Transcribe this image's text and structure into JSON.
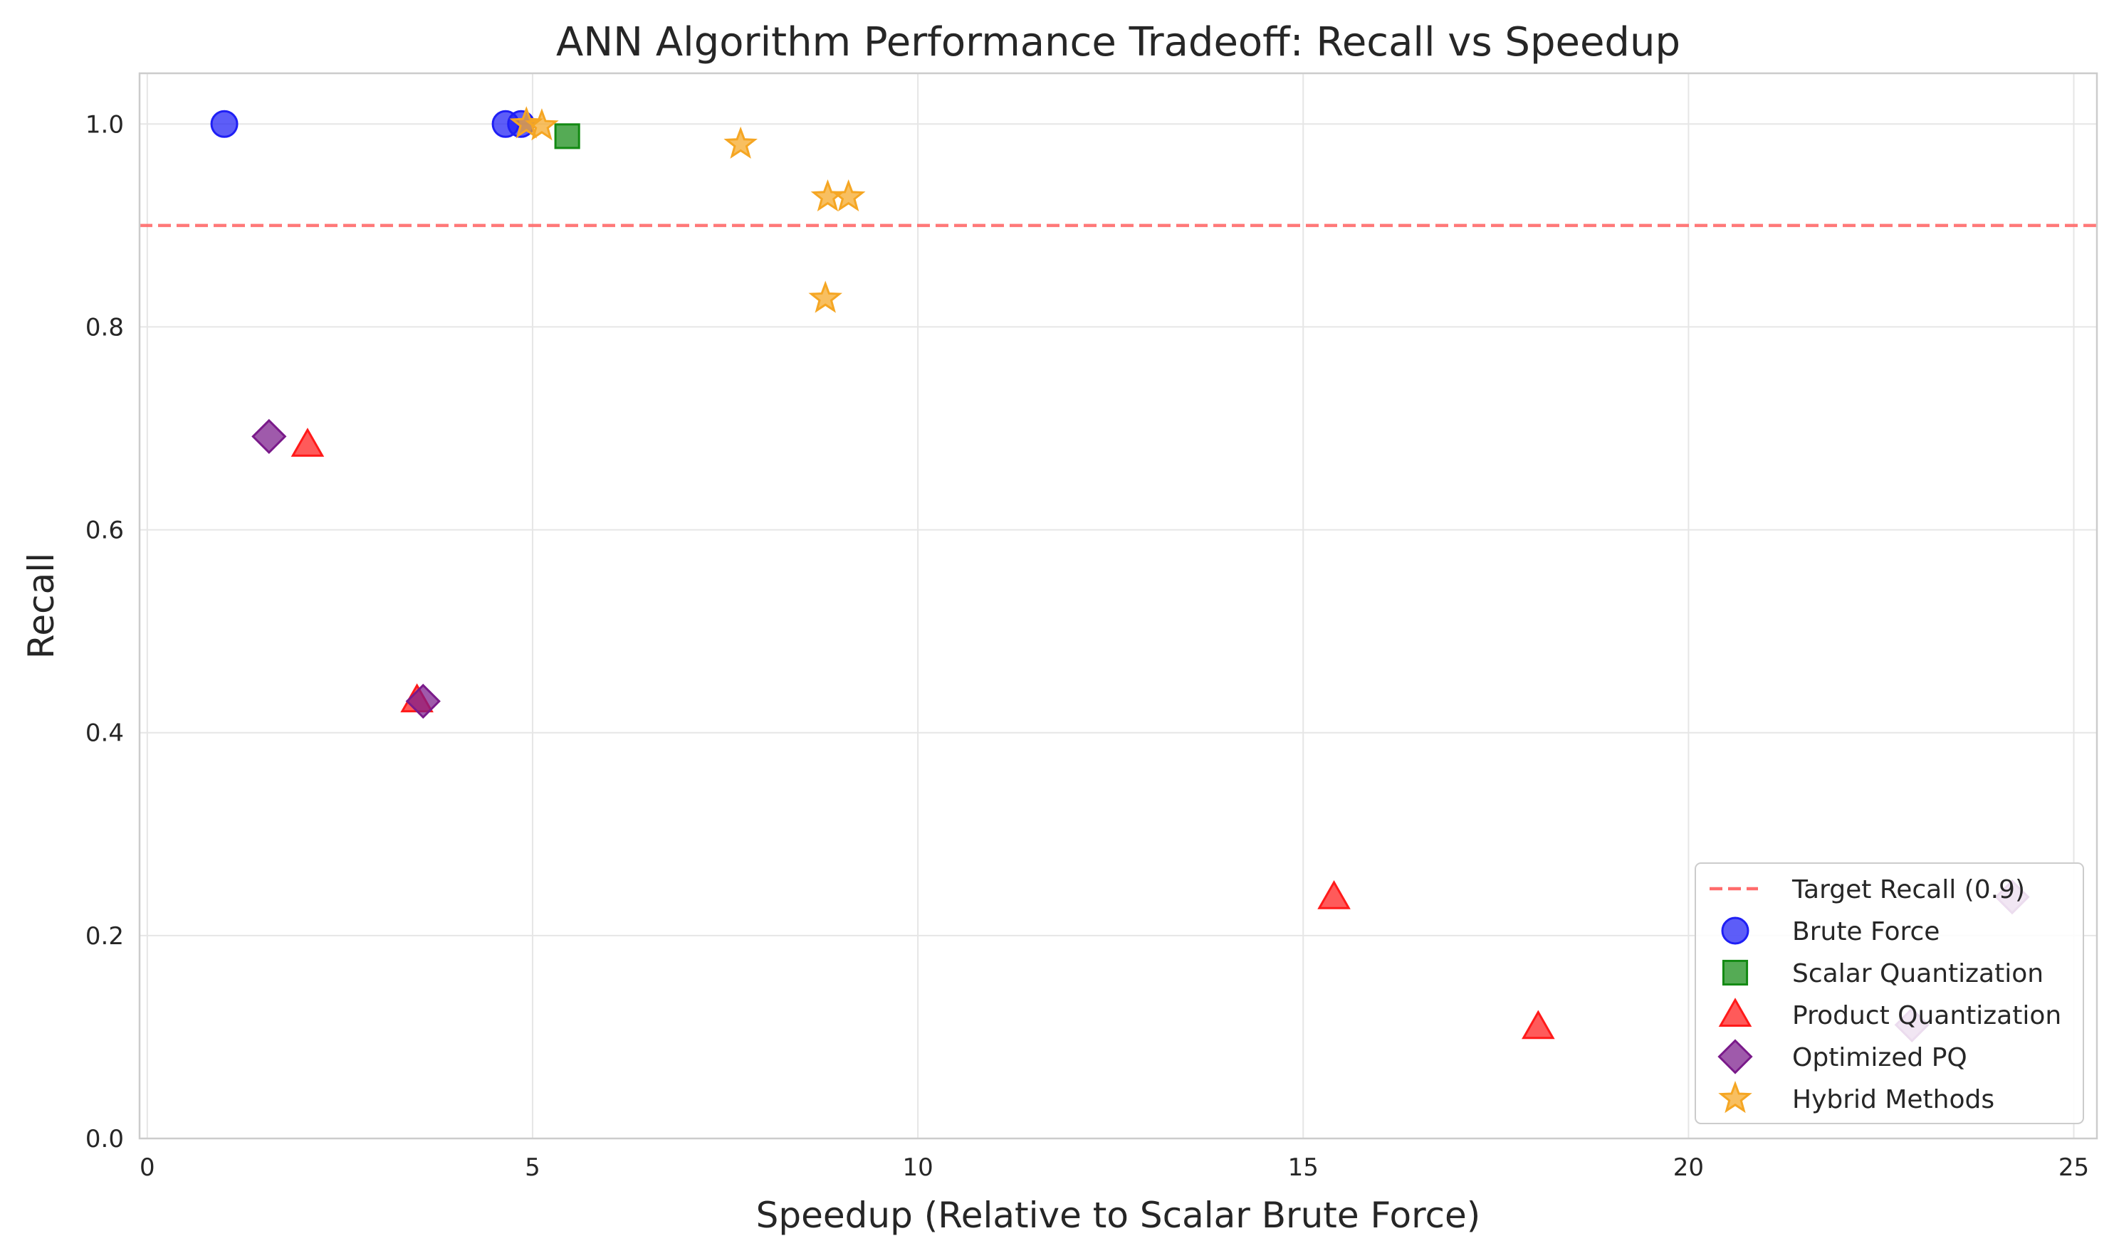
{
  "chart_data": {
    "type": "scatter",
    "title": "ANN Algorithm Performance Tradeoff: Recall vs Speedup",
    "xlabel": "Speedup (Relative to Scalar Brute Force)",
    "ylabel": "Recall",
    "xlim": [
      -0.1,
      25.3
    ],
    "ylim": [
      0.0,
      1.05
    ],
    "xticks": [
      0,
      5,
      10,
      15,
      20,
      25
    ],
    "yticks": [
      0.0,
      0.2,
      0.4,
      0.6,
      0.8,
      1.0
    ],
    "xtick_labels": [
      "0",
      "5",
      "10",
      "15",
      "20",
      "25"
    ],
    "ytick_labels": [
      "0.0",
      "0.2",
      "0.4",
      "0.6",
      "0.8",
      "1.0"
    ],
    "grid": true,
    "legend_position": "lower-right",
    "reference_line": {
      "name": "Target Recall (0.9)",
      "y": 0.9,
      "color": "#ff6b6b",
      "style": "dashed"
    },
    "series": [
      {
        "name": "Brute Force",
        "marker": "circle",
        "color": "#1f1ff5",
        "points": [
          [
            1.0,
            1.0
          ],
          [
            4.65,
            1.0
          ],
          [
            4.85,
            1.0
          ]
        ]
      },
      {
        "name": "Scalar Quantization",
        "marker": "square",
        "color": "#138a13",
        "points": [
          [
            5.45,
            0.988
          ]
        ]
      },
      {
        "name": "Product Quantization",
        "marker": "triangle",
        "color": "#ff1a1a",
        "points": [
          [
            2.08,
            0.684
          ],
          [
            3.5,
            0.432
          ],
          [
            15.4,
            0.238
          ],
          [
            18.05,
            0.11
          ]
        ]
      },
      {
        "name": "Optimized PQ",
        "marker": "diamond",
        "color": "#7a1a8a",
        "points": [
          [
            1.58,
            0.692
          ],
          [
            3.58,
            0.431
          ],
          [
            22.9,
            0.112
          ],
          [
            24.2,
            0.238
          ]
        ]
      },
      {
        "name": "Hybrid Methods",
        "marker": "star",
        "color": "#f5a623",
        "points": [
          [
            4.92,
            1.0
          ],
          [
            5.12,
            0.998
          ],
          [
            7.7,
            0.98
          ],
          [
            8.83,
            0.928
          ],
          [
            9.1,
            0.928
          ],
          [
            8.8,
            0.828
          ]
        ]
      }
    ]
  }
}
